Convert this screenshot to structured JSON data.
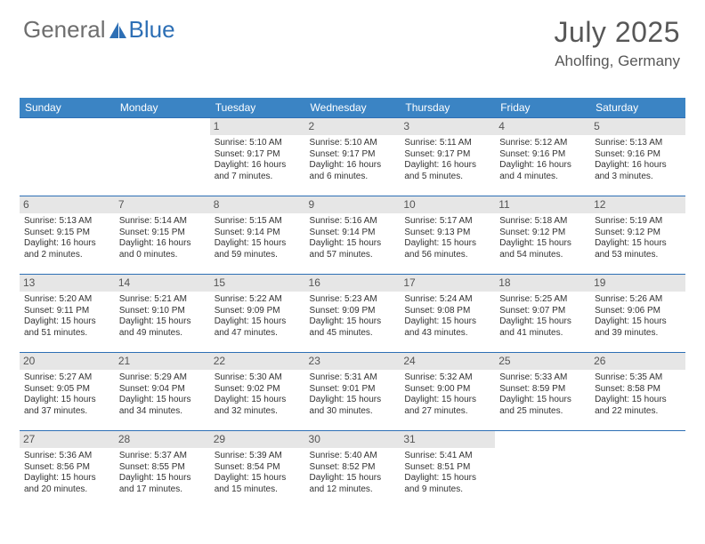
{
  "brand": {
    "text1": "General",
    "text2": "Blue"
  },
  "title": "July 2025",
  "location": "Aholfing, Germany",
  "colors": {
    "header_bg": "#3b84c4",
    "header_text": "#ffffff",
    "daynum_bg": "#e6e6e6",
    "daynum_text": "#555555",
    "cell_border": "#2d6fb5",
    "body_text": "#323232",
    "title_text": "#575757"
  },
  "layout": {
    "cols": 7,
    "rows": 5,
    "first_weekday_index": 2,
    "days_in_month": 31
  },
  "weekdays": [
    "Sunday",
    "Monday",
    "Tuesday",
    "Wednesday",
    "Thursday",
    "Friday",
    "Saturday"
  ],
  "days": [
    {
      "n": 1,
      "sunrise": "5:10 AM",
      "sunset": "9:17 PM",
      "daylight": "16 hours and 7 minutes."
    },
    {
      "n": 2,
      "sunrise": "5:10 AM",
      "sunset": "9:17 PM",
      "daylight": "16 hours and 6 minutes."
    },
    {
      "n": 3,
      "sunrise": "5:11 AM",
      "sunset": "9:17 PM",
      "daylight": "16 hours and 5 minutes."
    },
    {
      "n": 4,
      "sunrise": "5:12 AM",
      "sunset": "9:16 PM",
      "daylight": "16 hours and 4 minutes."
    },
    {
      "n": 5,
      "sunrise": "5:13 AM",
      "sunset": "9:16 PM",
      "daylight": "16 hours and 3 minutes."
    },
    {
      "n": 6,
      "sunrise": "5:13 AM",
      "sunset": "9:15 PM",
      "daylight": "16 hours and 2 minutes."
    },
    {
      "n": 7,
      "sunrise": "5:14 AM",
      "sunset": "9:15 PM",
      "daylight": "16 hours and 0 minutes."
    },
    {
      "n": 8,
      "sunrise": "5:15 AM",
      "sunset": "9:14 PM",
      "daylight": "15 hours and 59 minutes."
    },
    {
      "n": 9,
      "sunrise": "5:16 AM",
      "sunset": "9:14 PM",
      "daylight": "15 hours and 57 minutes."
    },
    {
      "n": 10,
      "sunrise": "5:17 AM",
      "sunset": "9:13 PM",
      "daylight": "15 hours and 56 minutes."
    },
    {
      "n": 11,
      "sunrise": "5:18 AM",
      "sunset": "9:12 PM",
      "daylight": "15 hours and 54 minutes."
    },
    {
      "n": 12,
      "sunrise": "5:19 AM",
      "sunset": "9:12 PM",
      "daylight": "15 hours and 53 minutes."
    },
    {
      "n": 13,
      "sunrise": "5:20 AM",
      "sunset": "9:11 PM",
      "daylight": "15 hours and 51 minutes."
    },
    {
      "n": 14,
      "sunrise": "5:21 AM",
      "sunset": "9:10 PM",
      "daylight": "15 hours and 49 minutes."
    },
    {
      "n": 15,
      "sunrise": "5:22 AM",
      "sunset": "9:09 PM",
      "daylight": "15 hours and 47 minutes."
    },
    {
      "n": 16,
      "sunrise": "5:23 AM",
      "sunset": "9:09 PM",
      "daylight": "15 hours and 45 minutes."
    },
    {
      "n": 17,
      "sunrise": "5:24 AM",
      "sunset": "9:08 PM",
      "daylight": "15 hours and 43 minutes."
    },
    {
      "n": 18,
      "sunrise": "5:25 AM",
      "sunset": "9:07 PM",
      "daylight": "15 hours and 41 minutes."
    },
    {
      "n": 19,
      "sunrise": "5:26 AM",
      "sunset": "9:06 PM",
      "daylight": "15 hours and 39 minutes."
    },
    {
      "n": 20,
      "sunrise": "5:27 AM",
      "sunset": "9:05 PM",
      "daylight": "15 hours and 37 minutes."
    },
    {
      "n": 21,
      "sunrise": "5:29 AM",
      "sunset": "9:04 PM",
      "daylight": "15 hours and 34 minutes."
    },
    {
      "n": 22,
      "sunrise": "5:30 AM",
      "sunset": "9:02 PM",
      "daylight": "15 hours and 32 minutes."
    },
    {
      "n": 23,
      "sunrise": "5:31 AM",
      "sunset": "9:01 PM",
      "daylight": "15 hours and 30 minutes."
    },
    {
      "n": 24,
      "sunrise": "5:32 AM",
      "sunset": "9:00 PM",
      "daylight": "15 hours and 27 minutes."
    },
    {
      "n": 25,
      "sunrise": "5:33 AM",
      "sunset": "8:59 PM",
      "daylight": "15 hours and 25 minutes."
    },
    {
      "n": 26,
      "sunrise": "5:35 AM",
      "sunset": "8:58 PM",
      "daylight": "15 hours and 22 minutes."
    },
    {
      "n": 27,
      "sunrise": "5:36 AM",
      "sunset": "8:56 PM",
      "daylight": "15 hours and 20 minutes."
    },
    {
      "n": 28,
      "sunrise": "5:37 AM",
      "sunset": "8:55 PM",
      "daylight": "15 hours and 17 minutes."
    },
    {
      "n": 29,
      "sunrise": "5:39 AM",
      "sunset": "8:54 PM",
      "daylight": "15 hours and 15 minutes."
    },
    {
      "n": 30,
      "sunrise": "5:40 AM",
      "sunset": "8:52 PM",
      "daylight": "15 hours and 12 minutes."
    },
    {
      "n": 31,
      "sunrise": "5:41 AM",
      "sunset": "8:51 PM",
      "daylight": "15 hours and 9 minutes."
    }
  ],
  "labels": {
    "sunrise": "Sunrise: ",
    "sunset": "Sunset: ",
    "daylight": "Daylight: "
  }
}
